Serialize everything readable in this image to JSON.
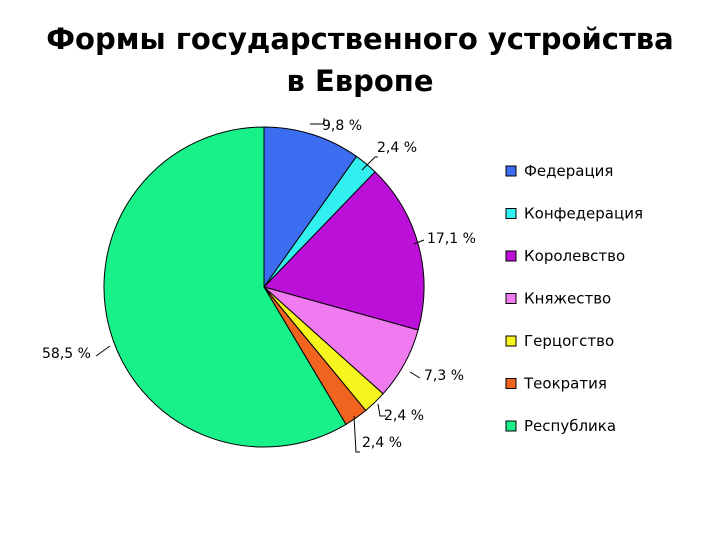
{
  "title_line_1": "Формы государственного устройства",
  "title_line_2": "в Европе",
  "chart_data": {
    "type": "pie",
    "title": "Формы государственного устройства в Европе",
    "legend_position": "right",
    "start_angle_deg": 0,
    "direction": "clockwise",
    "slices": [
      {
        "label": "Федерация",
        "value": 9.8,
        "value_label": "9,8 %",
        "color": "#3c6cf0"
      },
      {
        "label": "Конфедерация",
        "value": 2.4,
        "value_label": "2,4 %",
        "color": "#33f0f0"
      },
      {
        "label": "Королевство",
        "value": 17.1,
        "value_label": "17,1 %",
        "color": "#bc10d8"
      },
      {
        "label": "Княжество",
        "value": 7.3,
        "value_label": "7,3 %",
        "color": "#f07af0"
      },
      {
        "label": "Герцогство",
        "value": 2.4,
        "value_label": "2,4 %",
        "color": "#f6f61e"
      },
      {
        "label": "Теократия",
        "value": 2.4,
        "value_label": "2,4 %",
        "color": "#f06420"
      },
      {
        "label": "Республика",
        "value": 58.5,
        "value_label": "58,5 %",
        "color": "#18f08a"
      }
    ],
    "legend_order": [
      "Федерация",
      "Конфедерация",
      "Королевство",
      "Княжество",
      "Герцогство",
      "Теократия",
      "Республика"
    ]
  }
}
